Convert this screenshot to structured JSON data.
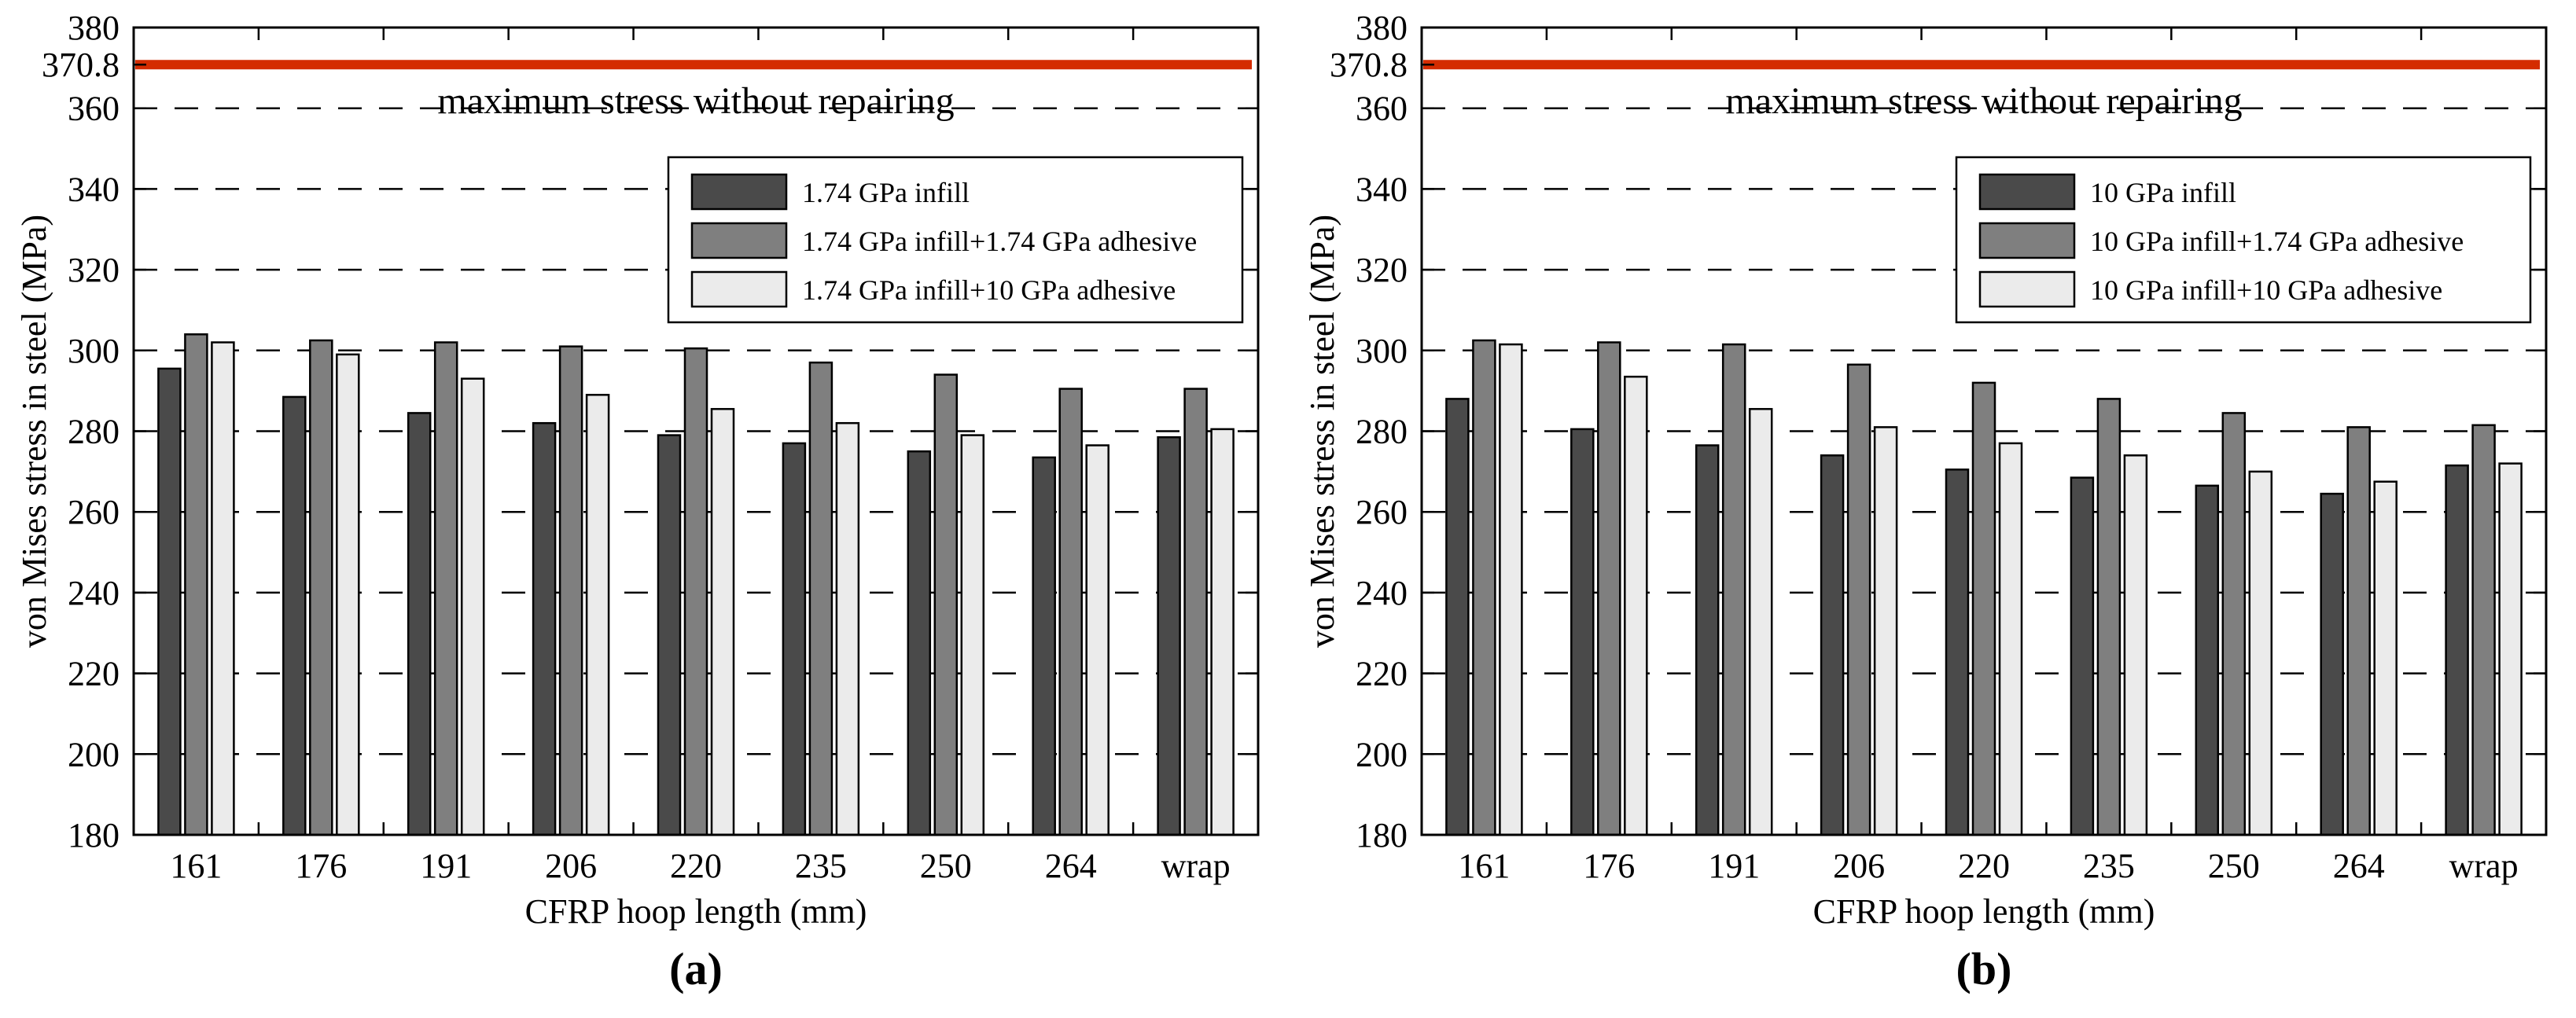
{
  "page": {
    "background": "#ffffff"
  },
  "colors": {
    "bar_dark": "#4a4a4a",
    "bar_medium": "#7f7f7f",
    "bar_light": "#ebebeb",
    "bar_border": "#000000",
    "axis": "#000000",
    "grid": "#000000",
    "limit_line_red": "#d42c00",
    "legend_bg": "#ffffff",
    "text": "#000000"
  },
  "chart_data": [
    {
      "type": "bar",
      "caption": "(a)",
      "xlabel": "CFRP hoop length (mm)",
      "ylabel": "von Mises stress in steel (MPa)",
      "categories": [
        "161",
        "176",
        "191",
        "206",
        "220",
        "235",
        "250",
        "264",
        "wrap"
      ],
      "series": [
        {
          "name": "1.74 GPa infill",
          "color_key": "bar_dark",
          "values": [
            295.5,
            288.5,
            284.5,
            282,
            279,
            277,
            275,
            273.5,
            278.5
          ]
        },
        {
          "name": "1.74 GPa infill+1.74 GPa adhesive",
          "color_key": "bar_medium",
          "values": [
            304,
            302.5,
            302,
            301,
            300.5,
            297,
            294,
            290.5,
            290.5
          ]
        },
        {
          "name": "1.74 GPa infill+10 GPa adhesive",
          "color_key": "bar_light",
          "values": [
            302,
            299,
            293,
            289,
            285.5,
            282,
            279,
            276.5,
            280.5
          ]
        }
      ],
      "ylim": [
        180,
        380
      ],
      "ytick_values": [
        180,
        200,
        220,
        240,
        260,
        280,
        300,
        320,
        340,
        360,
        370.8,
        380
      ],
      "ytick_labels": [
        "180",
        "200",
        "220",
        "240",
        "260",
        "280",
        "300",
        "320",
        "340",
        "360",
        "370.8",
        "380"
      ],
      "grid_values": [
        200,
        220,
        240,
        260,
        280,
        300,
        320,
        340,
        360
      ],
      "grid_style": "dashed",
      "legend_position": "upper-center-inside",
      "limit_line": {
        "value": 370.8,
        "label": "maximum stress without repairing"
      }
    },
    {
      "type": "bar",
      "caption": "(b)",
      "xlabel": "CFRP hoop length (mm)",
      "ylabel": "von Mises stress in steel (MPa)",
      "categories": [
        "161",
        "176",
        "191",
        "206",
        "220",
        "235",
        "250",
        "264",
        "wrap"
      ],
      "series": [
        {
          "name": "10 GPa infill",
          "color_key": "bar_dark",
          "values": [
            288,
            280.5,
            276.5,
            274,
            270.5,
            268.5,
            266.5,
            264.5,
            271.5
          ]
        },
        {
          "name": "10 GPa infill+1.74 GPa adhesive",
          "color_key": "bar_medium",
          "values": [
            302.5,
            302,
            301.5,
            296.5,
            292,
            288,
            284.5,
            281,
            281.5
          ]
        },
        {
          "name": "10 GPa infill+10 GPa adhesive",
          "color_key": "bar_light",
          "values": [
            301.5,
            293.5,
            285.5,
            281,
            277,
            274,
            270,
            267.5,
            272
          ]
        }
      ],
      "ylim": [
        180,
        380
      ],
      "ytick_values": [
        180,
        200,
        220,
        240,
        260,
        280,
        300,
        320,
        340,
        360,
        370.8,
        380
      ],
      "ytick_labels": [
        "180",
        "200",
        "220",
        "240",
        "260",
        "280",
        "300",
        "320",
        "340",
        "360",
        "370.8",
        "380"
      ],
      "grid_values": [
        200,
        220,
        240,
        260,
        280,
        300,
        320,
        340,
        360
      ],
      "grid_style": "dashed",
      "legend_position": "upper-center-inside",
      "limit_line": {
        "value": 370.8,
        "label": "maximum stress without repairing"
      }
    }
  ]
}
